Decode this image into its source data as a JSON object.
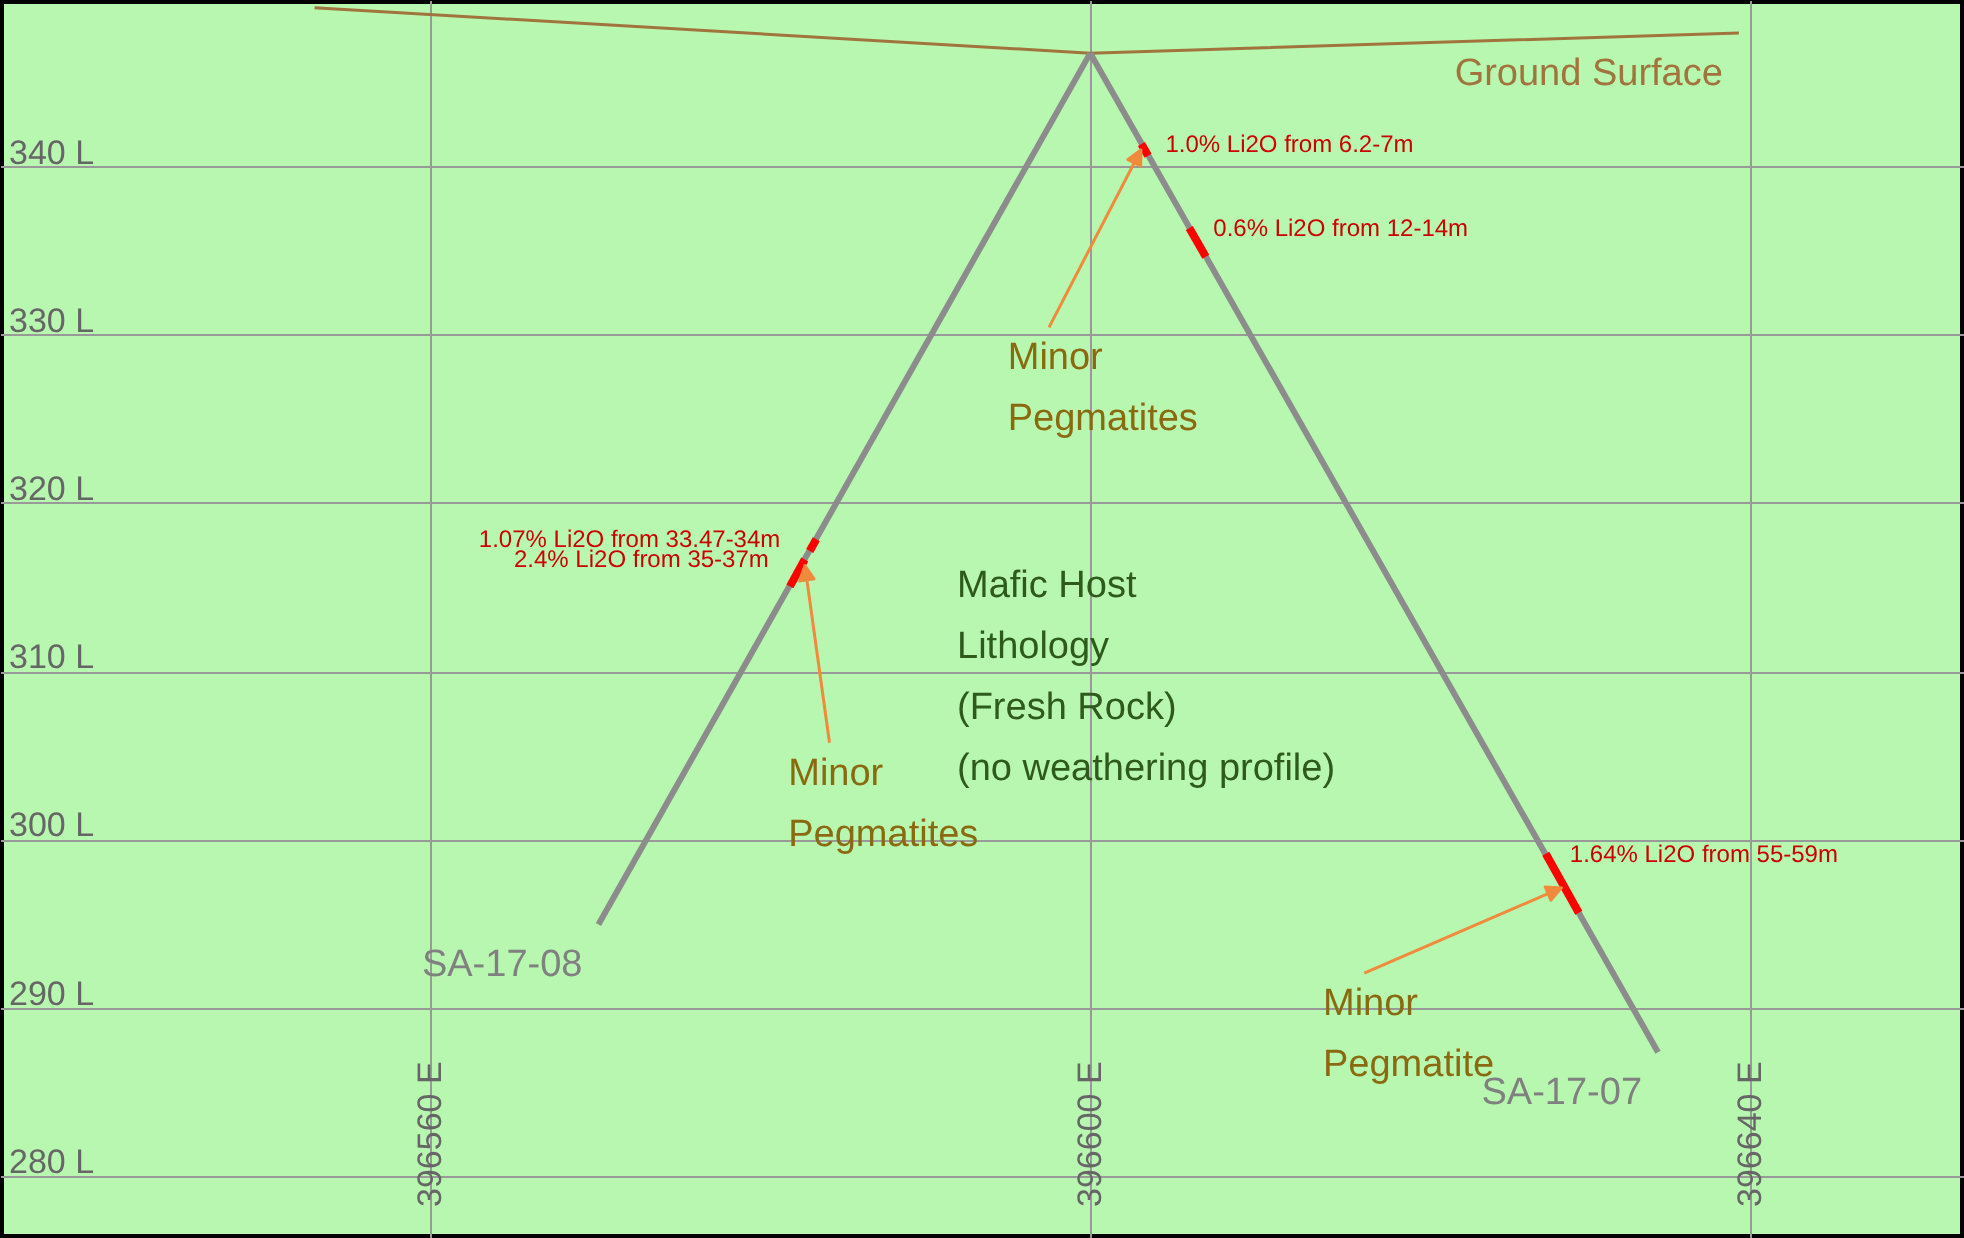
{
  "chart_data": {
    "type": "line",
    "xlim": [
      396534,
      396653
    ],
    "ylim": [
      276.3,
      349.9
    ],
    "xticks": [
      {
        "value": 396560,
        "label": "396560 E"
      },
      {
        "value": 396600,
        "label": "396600 E"
      },
      {
        "value": 396640,
        "label": "396640 E"
      }
    ],
    "yticks": [
      {
        "value": 280,
        "label": "280 L"
      },
      {
        "value": 290,
        "label": "290 L"
      },
      {
        "value": 300,
        "label": "300 L"
      },
      {
        "value": 310,
        "label": "310 L"
      },
      {
        "value": 320,
        "label": "320 L"
      },
      {
        "value": 330,
        "label": "330 L"
      },
      {
        "value": 340,
        "label": "340 L"
      }
    ],
    "grid": true,
    "series": [
      {
        "name": "Ground Surface",
        "color": "#a0743c",
        "x": [
          396553,
          396600,
          396639.3
        ],
        "values": [
          349.5,
          346.8,
          348.0
        ]
      },
      {
        "name": "SA-17-08",
        "color": "#8c8c8c",
        "x": [
          396600,
          396570.2
        ],
        "values": [
          346.8,
          295.0
        ]
      },
      {
        "name": "SA-17-07",
        "color": "#8c8c8c",
        "x": [
          396600,
          396634.4
        ],
        "values": [
          346.8,
          287.4
        ]
      },
      {
        "color": "#ff0000",
        "x": [
          396603.1,
          396603.5
        ],
        "values": [
          341.4,
          340.7
        ]
      },
      {
        "color": "#ff0000",
        "x": [
          396606.0,
          396607.0
        ],
        "values": [
          336.4,
          334.7
        ]
      },
      {
        "color": "#ff0000",
        "x": [
          396627.6,
          396629.6
        ],
        "values": [
          299.2,
          295.7
        ]
      },
      {
        "color": "#ff0000",
        "x": [
          396583.4,
          396583.0
        ],
        "values": [
          317.9,
          317.2
        ]
      },
      {
        "color": "#ff0000",
        "x": [
          396582.7,
          396581.8
        ],
        "values": [
          316.7,
          315.1
        ]
      }
    ],
    "annotations": [
      {
        "text": "1.0% Li2O from 6.2-7m",
        "x": 396603.1,
        "y": 341.4
      },
      {
        "text": "0.6% Li2O from 12-14m",
        "x": 396606.0,
        "y": 336.4
      },
      {
        "text": "1.07% Li2O from 33.47-34m",
        "x": 396583.4,
        "y": 317.9
      },
      {
        "text": "2.4% Li2O from 35-37m",
        "x": 396582.7,
        "y": 316.7
      },
      {
        "text": "1.64% Li2O from 55-59m",
        "x": 396627.6,
        "y": 299.2
      },
      {
        "text": "Minor\nPegmatites",
        "x": 396603.1,
        "y": 341.4
      },
      {
        "text": "Minor\nPegmatites",
        "x": 396582.7,
        "y": 316.7
      },
      {
        "text": "Minor\nPegmatite",
        "x": 396628.6,
        "y": 297.5
      },
      "Mafic Host\nLithology\n(Fresh Rock)\n(no weathering profile)"
    ]
  }
}
